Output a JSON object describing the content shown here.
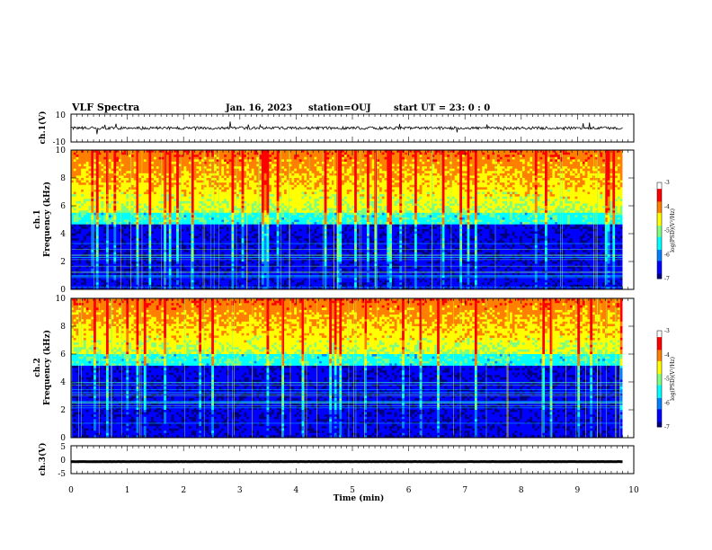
{
  "header": {
    "title": "VLF Spectra",
    "date": "Jan. 16, 2023",
    "station": "station=OUJ",
    "start": "start  UT =  23: 0  : 0"
  },
  "chart_data": [
    {
      "name": "ch1-waveform",
      "type": "line",
      "ylabel": "ch.1(V)",
      "ylim": [
        -10,
        10
      ],
      "yticks": [
        "10",
        "-10"
      ],
      "baseline_v": 0,
      "line_color": "#000000"
    },
    {
      "name": "ch1-spectrogram",
      "type": "heatmap",
      "ylabel_line1": "ch.1",
      "ylabel_line2": "Frequency (kHz)",
      "ylim": [
        0,
        10
      ],
      "yticks": [
        "0",
        "2",
        "4",
        "6",
        "8",
        "10"
      ],
      "colorbar": {
        "label": "log(PSD)(V²/Hz)",
        "range": [
          -7,
          -3
        ],
        "ticks": [
          "-3",
          "-4",
          "-5",
          "-6",
          "-7"
        ]
      }
    },
    {
      "name": "ch2-spectrogram",
      "type": "heatmap",
      "ylabel_line1": "ch.2",
      "ylabel_line2": "Frequency (kHz)",
      "ylim": [
        0,
        10
      ],
      "yticks": [
        "0",
        "2",
        "4",
        "6",
        "8",
        "10"
      ],
      "colorbar": {
        "label": "log(PSD)(V²/Hz)",
        "range": [
          -7,
          -3
        ],
        "ticks": [
          "-3",
          "-4",
          "-5",
          "-6",
          "-7"
        ]
      }
    },
    {
      "name": "ch3-waveform",
      "type": "line",
      "ylabel": "ch.3(V)",
      "ylim": [
        -5,
        5
      ],
      "yticks": [
        "5",
        "0",
        "-5"
      ],
      "baseline_v": -0.7,
      "line_color": "#000000"
    }
  ],
  "xaxis": {
    "label": "Time (min)",
    "xlim": [
      0,
      10
    ],
    "ticks": [
      "0",
      "1",
      "2",
      "3",
      "4",
      "5",
      "6",
      "7",
      "8",
      "9",
      "10"
    ],
    "data_end_min": 9.8
  },
  "colors": [
    "#00007f",
    "#0000ff",
    "#0080ff",
    "#00ffff",
    "#7fff7f",
    "#ffff00",
    "#ff8000",
    "#ff0000",
    "#ffffff"
  ]
}
